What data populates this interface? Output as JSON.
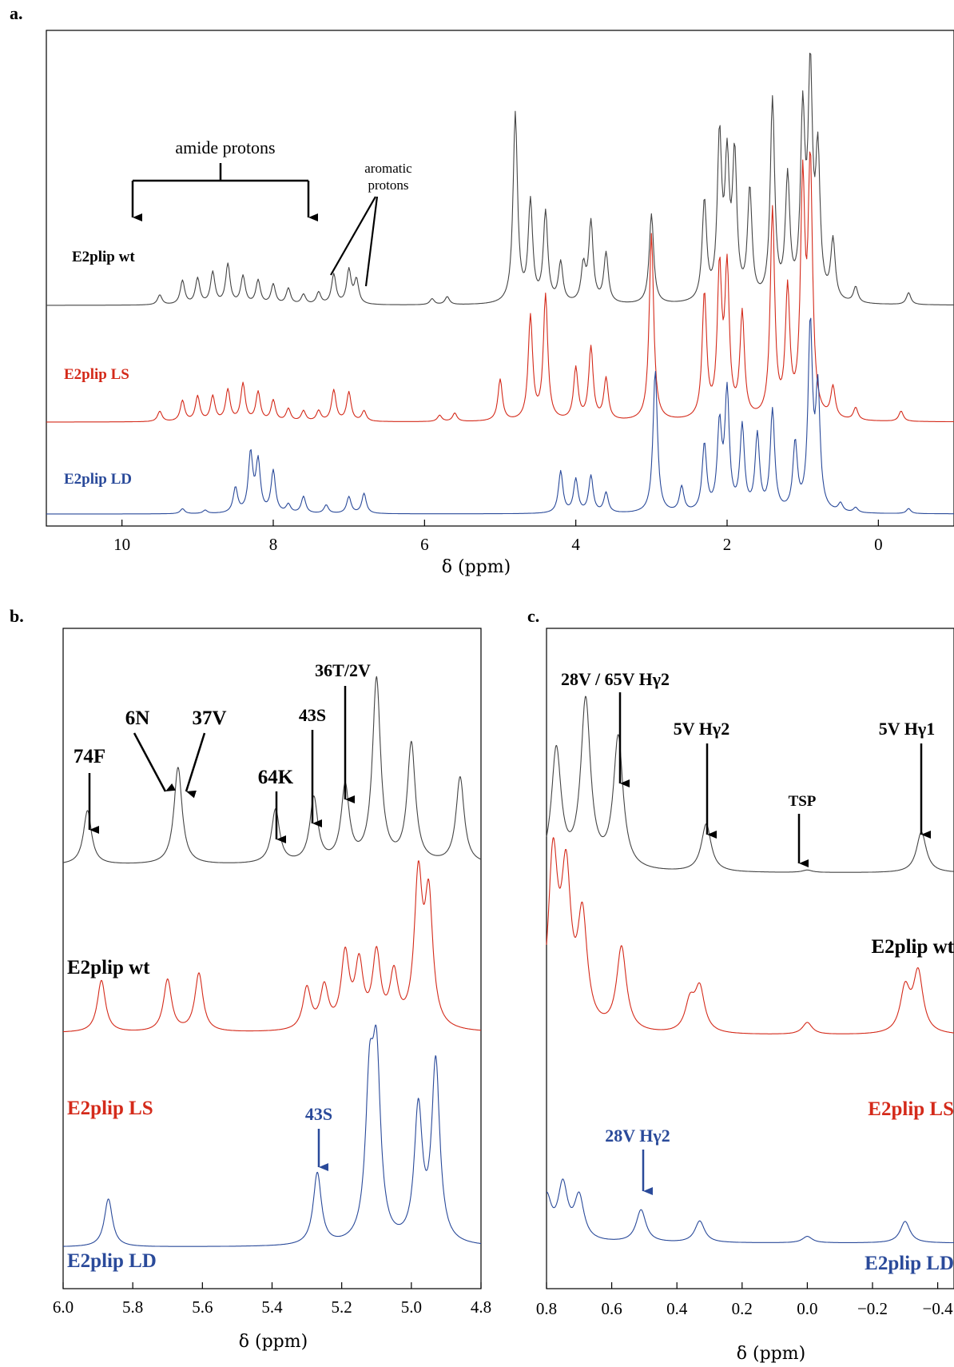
{
  "colors": {
    "wt": "#444444",
    "ls": "#d42a1a",
    "ld": "#2a4a9a"
  },
  "chart_data": [
    {
      "panel": "a.",
      "type": "line",
      "xlabel": "δ (ppm)",
      "xlim": [
        11,
        -1
      ],
      "xticks": [
        "10",
        "8",
        "6",
        "4",
        "2",
        "0"
      ],
      "series": [
        {
          "name": "E2plip wt",
          "peaks": [
            [
              9.5,
              0.05
            ],
            [
              9.2,
              0.12
            ],
            [
              9.0,
              0.13
            ],
            [
              8.8,
              0.16
            ],
            [
              8.6,
              0.2
            ],
            [
              8.4,
              0.14
            ],
            [
              8.2,
              0.12
            ],
            [
              8.0,
              0.1
            ],
            [
              7.8,
              0.08
            ],
            [
              7.6,
              0.05
            ],
            [
              7.4,
              0.06
            ],
            [
              7.2,
              0.15
            ],
            [
              7.0,
              0.17
            ],
            [
              6.9,
              0.12
            ],
            [
              5.9,
              0.03
            ],
            [
              5.7,
              0.04
            ],
            [
              4.8,
              0.95
            ],
            [
              4.6,
              0.5
            ],
            [
              4.4,
              0.45
            ],
            [
              4.2,
              0.2
            ],
            [
              3.9,
              0.18
            ],
            [
              3.8,
              0.4
            ],
            [
              3.6,
              0.25
            ],
            [
              3.0,
              0.45
            ],
            [
              2.3,
              0.5
            ],
            [
              2.1,
              0.8
            ],
            [
              2.0,
              0.65
            ],
            [
              1.9,
              0.7
            ],
            [
              1.7,
              0.55
            ],
            [
              1.4,
              1.0
            ],
            [
              1.2,
              0.6
            ],
            [
              1.0,
              0.9
            ],
            [
              0.9,
              1.1
            ],
            [
              0.8,
              0.7
            ],
            [
              0.6,
              0.3
            ],
            [
              0.3,
              0.08
            ],
            [
              -0.4,
              0.06
            ]
          ]
        },
        {
          "name": "E2plip LS",
          "peaks": [
            [
              9.5,
              0.05
            ],
            [
              9.2,
              0.1
            ],
            [
              9.0,
              0.12
            ],
            [
              8.8,
              0.12
            ],
            [
              8.6,
              0.15
            ],
            [
              8.4,
              0.18
            ],
            [
              8.2,
              0.14
            ],
            [
              8.0,
              0.1
            ],
            [
              7.8,
              0.06
            ],
            [
              7.6,
              0.05
            ],
            [
              7.4,
              0.05
            ],
            [
              7.2,
              0.15
            ],
            [
              7.0,
              0.14
            ],
            [
              6.8,
              0.05
            ],
            [
              5.8,
              0.03
            ],
            [
              5.6,
              0.04
            ],
            [
              5.0,
              0.2
            ],
            [
              4.6,
              0.5
            ],
            [
              4.4,
              0.6
            ],
            [
              4.0,
              0.25
            ],
            [
              3.8,
              0.35
            ],
            [
              3.6,
              0.2
            ],
            [
              3.0,
              0.9
            ],
            [
              2.3,
              0.6
            ],
            [
              2.1,
              0.7
            ],
            [
              2.0,
              0.7
            ],
            [
              1.8,
              0.5
            ],
            [
              1.4,
              1.0
            ],
            [
              1.2,
              0.6
            ],
            [
              1.0,
              1.1
            ],
            [
              0.9,
              1.2
            ],
            [
              0.6,
              0.15
            ],
            [
              0.3,
              0.06
            ],
            [
              -0.3,
              0.05
            ]
          ]
        },
        {
          "name": "E2plip LD",
          "peaks": [
            [
              9.2,
              0.03
            ],
            [
              8.9,
              0.02
            ],
            [
              8.5,
              0.15
            ],
            [
              8.3,
              0.35
            ],
            [
              8.2,
              0.3
            ],
            [
              8.0,
              0.25
            ],
            [
              7.8,
              0.05
            ],
            [
              7.6,
              0.1
            ],
            [
              7.3,
              0.05
            ],
            [
              7.0,
              0.1
            ],
            [
              6.8,
              0.12
            ],
            [
              4.2,
              0.25
            ],
            [
              4.0,
              0.2
            ],
            [
              3.8,
              0.22
            ],
            [
              3.6,
              0.12
            ],
            [
              2.95,
              0.85
            ],
            [
              2.6,
              0.15
            ],
            [
              2.3,
              0.4
            ],
            [
              2.1,
              0.5
            ],
            [
              2.0,
              0.7
            ],
            [
              1.8,
              0.5
            ],
            [
              1.6,
              0.45
            ],
            [
              1.4,
              0.6
            ],
            [
              1.1,
              0.4
            ],
            [
              0.9,
              1.1
            ],
            [
              0.8,
              0.7
            ],
            [
              0.5,
              0.05
            ],
            [
              0.3,
              0.03
            ],
            [
              -0.4,
              0.03
            ]
          ]
        }
      ],
      "labels": {
        "wt": "E2plip wt",
        "ls": "E2plip LS",
        "ld": "E2plip LD",
        "amide": "amide protons",
        "aromatic_1": "aromatic",
        "aromatic_2": "protons"
      }
    },
    {
      "panel": "b.",
      "type": "line",
      "xlabel": "δ (ppm)",
      "xlim": [
        6.0,
        4.8
      ],
      "xticks": [
        "6.0",
        "5.8",
        "5.6",
        "5.4",
        "5.2",
        "5.0",
        "4.8"
      ],
      "series": [
        {
          "name": "E2plip wt",
          "peaks": [
            [
              5.93,
              0.25
            ],
            [
              5.67,
              0.45
            ],
            [
              5.39,
              0.25
            ],
            [
              5.28,
              0.3
            ],
            [
              5.19,
              0.35
            ],
            [
              5.1,
              0.85
            ],
            [
              5.0,
              0.55
            ],
            [
              4.86,
              0.4
            ]
          ]
        },
        {
          "name": "E2plip LS",
          "peaks": [
            [
              5.89,
              0.25
            ],
            [
              5.7,
              0.25
            ],
            [
              5.61,
              0.28
            ],
            [
              5.3,
              0.2
            ],
            [
              5.25,
              0.2
            ],
            [
              5.19,
              0.35
            ],
            [
              5.15,
              0.3
            ],
            [
              5.1,
              0.35
            ],
            [
              5.05,
              0.25
            ],
            [
              4.98,
              0.7
            ],
            [
              4.95,
              0.6
            ]
          ]
        },
        {
          "name": "E2plip LD",
          "peaks": [
            [
              5.87,
              0.2
            ],
            [
              5.27,
              0.3
            ],
            [
              5.12,
              0.6
            ],
            [
              5.1,
              0.7
            ],
            [
              4.98,
              0.55
            ],
            [
              4.93,
              0.75
            ]
          ]
        }
      ],
      "annotations": [
        "74F",
        "6N",
        "37V",
        "64K",
        "43S",
        "36T/2V",
        "43S"
      ],
      "labels": {
        "wt": "E2plip wt",
        "ls": "E2plip LS",
        "ld": "E2plip LD"
      }
    },
    {
      "panel": "c.",
      "type": "line",
      "xlabel": "δ (ppm)",
      "xlim": [
        0.8,
        -0.45
      ],
      "xticks": [
        "0.8",
        "0.6",
        "0.4",
        "0.2",
        "0.0",
        "−0.2",
        "−0.4"
      ],
      "series": [
        {
          "name": "E2plip wt",
          "peaks": [
            [
              0.77,
              0.5
            ],
            [
              0.68,
              0.7
            ],
            [
              0.58,
              0.55
            ],
            [
              0.31,
              0.2
            ],
            [
              0.0,
              0.01
            ],
            [
              -0.35,
              0.17
            ]
          ]
        },
        {
          "name": "E2plip LS",
          "peaks": [
            [
              0.78,
              0.7
            ],
            [
              0.74,
              0.6
            ],
            [
              0.69,
              0.45
            ],
            [
              0.57,
              0.35
            ],
            [
              0.36,
              0.12
            ],
            [
              0.33,
              0.18
            ],
            [
              0.0,
              0.05
            ],
            [
              -0.3,
              0.18
            ],
            [
              -0.34,
              0.25
            ]
          ]
        },
        {
          "name": "E2plip LD",
          "peaks": [
            [
              0.8,
              0.2
            ],
            [
              0.75,
              0.25
            ],
            [
              0.7,
              0.2
            ],
            [
              0.51,
              0.15
            ],
            [
              0.33,
              0.1
            ],
            [
              0.0,
              0.03
            ],
            [
              -0.3,
              0.1
            ]
          ]
        }
      ],
      "annotations": [
        "28V / 65V Hγ2",
        "5V Hγ2",
        "TSP",
        "5V Hγ1",
        "28V Hγ2"
      ],
      "labels": {
        "wt": "E2plip wt",
        "ls": "E2plip LS",
        "ld": "E2plip LD"
      }
    }
  ]
}
